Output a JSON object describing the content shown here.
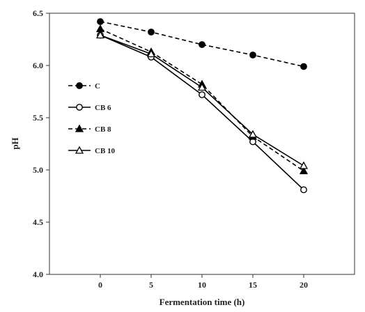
{
  "chart_data": {
    "type": "line",
    "xlabel": "Fermentation time (h)",
    "ylabel": "pH",
    "x": [
      0,
      5,
      10,
      15,
      20
    ],
    "xticks": [
      "0",
      "5",
      "10",
      "15",
      "20"
    ],
    "yticks": [
      "4.0",
      "4.5",
      "5.0",
      "5.5",
      "6.0",
      "6.5"
    ],
    "xlim": [
      -5,
      25
    ],
    "ylim": [
      4.0,
      6.5
    ],
    "grid": false,
    "legend_position": "left",
    "series": [
      {
        "name": "C",
        "values": [
          6.42,
          6.32,
          6.2,
          6.1,
          5.99
        ],
        "marker": "circle-filled",
        "line": "dashed",
        "color": "#000000"
      },
      {
        "name": "CB 6",
        "values": [
          6.29,
          6.08,
          5.72,
          5.27,
          4.81
        ],
        "marker": "circle-open",
        "line": "solid",
        "color": "#000000"
      },
      {
        "name": "CB 8",
        "values": [
          6.35,
          6.13,
          5.82,
          5.32,
          4.99
        ],
        "marker": "triangle-filled",
        "line": "dashed",
        "color": "#000000"
      },
      {
        "name": "CB 10",
        "values": [
          6.29,
          6.11,
          5.79,
          5.34,
          5.04
        ],
        "marker": "triangle-open",
        "line": "solid",
        "color": "#000000"
      }
    ]
  }
}
